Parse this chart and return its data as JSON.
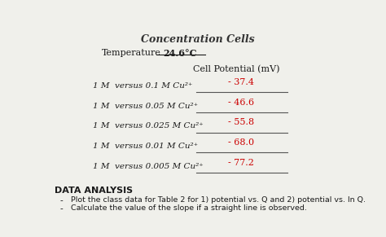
{
  "title": "Concentration Cells",
  "temperature_label": "Temperature",
  "temperature_value": "24.6°C",
  "column_header": "Cell Potential (mV)",
  "row_labels": [
    "1 M  versus 0.1 M Cu²⁺",
    "1 M  versus 0.05 M Cu²⁺",
    "1 M  versus 0.025 M Cu²⁺",
    "1 M  versus 0.01 M Cu²⁺",
    "1 M  versus 0.005 M Cu²⁺"
  ],
  "values": [
    "- 37.4",
    "- 46.6",
    "- 55.8",
    "- 68.0",
    "- 77.2"
  ],
  "data_analysis_title": "DATA ANALYSIS",
  "bullets": [
    "Plot the class data for Table 2 for 1) potential vs. Q and 2) potential vs. ln Q.",
    "Calculate the value of the slope if a straight line is observed."
  ],
  "value_color": "#cc0000",
  "text_color": "#1a1a1a",
  "bg_color": "#f0f0eb",
  "line_color": "#555555",
  "title_color": "#333333"
}
